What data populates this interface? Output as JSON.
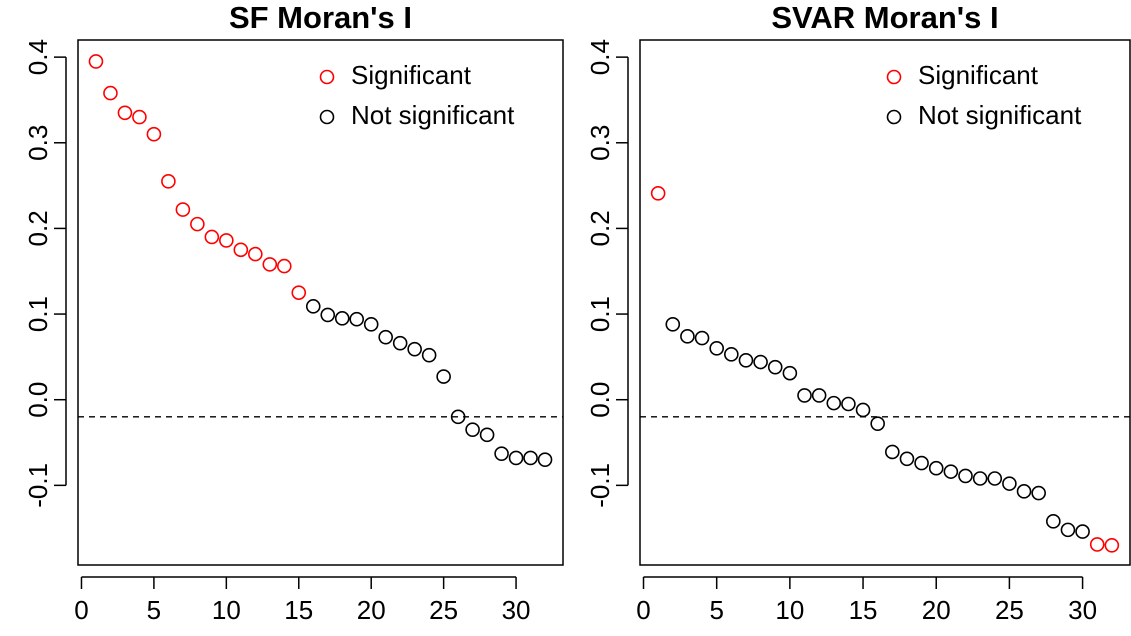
{
  "chart_data": [
    {
      "type": "scatter",
      "title": "SF Moran's I",
      "x": [
        1,
        2,
        3,
        4,
        5,
        6,
        7,
        8,
        9,
        10,
        11,
        12,
        13,
        14,
        15,
        16,
        17,
        18,
        19,
        20,
        21,
        22,
        23,
        24,
        25,
        26,
        27,
        28,
        29,
        30,
        31,
        32
      ],
      "series": [
        {
          "name": "Significant",
          "color": "#ff0000",
          "values": [
            0.395,
            0.358,
            0.335,
            0.33,
            0.31,
            0.255,
            0.222,
            0.205,
            0.19,
            0.186,
            0.175,
            0.17,
            0.158,
            0.156,
            0.125,
            null,
            null,
            null,
            null,
            null,
            null,
            null,
            null,
            null,
            null,
            null,
            null,
            null,
            null,
            null,
            null,
            null
          ]
        },
        {
          "name": "Not significant",
          "color": "#000000",
          "values": [
            null,
            null,
            null,
            null,
            null,
            null,
            null,
            null,
            null,
            null,
            null,
            null,
            null,
            null,
            null,
            0.109,
            0.099,
            0.095,
            0.094,
            0.088,
            0.073,
            0.066,
            0.059,
            0.052,
            0.027,
            -0.02,
            -0.035,
            -0.041,
            -0.063,
            -0.068,
            -0.068,
            -0.07
          ]
        }
      ],
      "hline": -0.02,
      "xlim": [
        -0.24,
        33.24
      ],
      "ylim": [
        -0.193,
        0.42
      ],
      "xticks": [
        0,
        5,
        10,
        15,
        20,
        25,
        30
      ],
      "yticks": [
        -0.1,
        {
          "value": 0,
          "label": "0.0"
        },
        0.1,
        0.2,
        0.3,
        0.4
      ],
      "legend": "top-right"
    },
    {
      "type": "scatter",
      "title": "SVAR Moran's I",
      "x": [
        1,
        2,
        3,
        4,
        5,
        6,
        7,
        8,
        9,
        10,
        11,
        12,
        13,
        14,
        15,
        16,
        17,
        18,
        19,
        20,
        21,
        22,
        23,
        24,
        25,
        26,
        27,
        28,
        29,
        30,
        31,
        32
      ],
      "series": [
        {
          "name": "Significant",
          "color": "#ff0000",
          "values": [
            0.241,
            null,
            null,
            null,
            null,
            null,
            null,
            null,
            null,
            null,
            null,
            null,
            null,
            null,
            null,
            null,
            null,
            null,
            null,
            null,
            null,
            null,
            null,
            null,
            null,
            null,
            null,
            null,
            null,
            null,
            -0.169,
            -0.17
          ]
        },
        {
          "name": "Not significant",
          "color": "#000000",
          "values": [
            null,
            0.088,
            0.074,
            0.072,
            0.06,
            0.053,
            0.046,
            0.044,
            0.038,
            0.031,
            0.005,
            0.005,
            -0.004,
            -0.005,
            -0.012,
            -0.028,
            -0.061,
            -0.069,
            -0.074,
            -0.08,
            -0.084,
            -0.089,
            -0.092,
            -0.092,
            -0.098,
            -0.107,
            -0.109,
            -0.142,
            -0.152,
            -0.154,
            null,
            null
          ]
        }
      ],
      "hline": -0.02,
      "xlim": [
        -0.24,
        33.24
      ],
      "ylim": [
        -0.193,
        0.42
      ],
      "xticks": [
        0,
        5,
        10,
        15,
        20,
        25,
        30
      ],
      "yticks": [
        -0.1,
        {
          "value": 0,
          "label": "0.0"
        },
        0.1,
        0.2,
        0.3,
        0.4
      ],
      "legend": "top-right"
    }
  ]
}
